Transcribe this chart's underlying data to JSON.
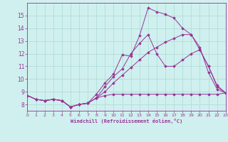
{
  "background_color": "#cff0ee",
  "grid_color": "#b0ddd8",
  "line_color": "#993399",
  "xlabel": "Windchill (Refroidissement éolien,°C)",
  "xlim": [
    0,
    23
  ],
  "ylim": [
    7.5,
    16.0
  ],
  "xticks": [
    0,
    1,
    2,
    3,
    4,
    5,
    6,
    7,
    8,
    9,
    10,
    11,
    12,
    13,
    14,
    15,
    16,
    17,
    18,
    19,
    20,
    21,
    22,
    23
  ],
  "yticks": [
    8,
    9,
    10,
    11,
    12,
    13,
    14,
    15
  ],
  "series": [
    {
      "x": [
        0,
        1,
        2,
        3,
        4,
        5,
        6,
        7,
        8,
        9,
        10,
        11,
        12,
        13,
        14,
        15,
        16,
        17,
        18,
        19,
        20,
        21,
        22,
        23
      ],
      "y": [
        8.7,
        8.4,
        8.3,
        8.4,
        8.3,
        7.8,
        8.0,
        8.1,
        8.8,
        9.7,
        10.4,
        11.9,
        11.8,
        13.4,
        15.6,
        15.3,
        15.1,
        14.8,
        14.0,
        13.5,
        12.3,
        11.0,
        9.4,
        8.9
      ]
    },
    {
      "x": [
        0,
        1,
        2,
        3,
        4,
        5,
        6,
        7,
        8,
        9,
        10,
        11,
        12,
        13,
        14,
        15,
        16,
        17,
        18,
        19,
        20,
        21,
        22,
        23
      ],
      "y": [
        8.7,
        8.4,
        8.3,
        8.4,
        8.3,
        7.8,
        8.0,
        8.1,
        8.5,
        9.4,
        10.2,
        10.8,
        12.0,
        12.8,
        13.5,
        12.0,
        11.0,
        11.0,
        11.5,
        12.0,
        12.3,
        11.0,
        9.5,
        8.9
      ]
    },
    {
      "x": [
        0,
        1,
        2,
        3,
        4,
        5,
        6,
        7,
        8,
        9,
        10,
        11,
        12,
        13,
        14,
        15,
        16,
        17,
        18,
        19,
        20,
        21,
        22,
        23
      ],
      "y": [
        8.7,
        8.4,
        8.3,
        8.4,
        8.3,
        7.8,
        8.0,
        8.1,
        8.5,
        9.0,
        9.7,
        10.3,
        10.9,
        11.5,
        12.1,
        12.5,
        12.9,
        13.2,
        13.5,
        13.5,
        12.5,
        10.5,
        9.2,
        8.9
      ]
    },
    {
      "x": [
        0,
        1,
        2,
        3,
        4,
        5,
        6,
        7,
        8,
        9,
        10,
        11,
        12,
        13,
        14,
        15,
        16,
        17,
        18,
        19,
        20,
        21,
        22,
        23
      ],
      "y": [
        8.7,
        8.4,
        8.3,
        8.4,
        8.3,
        7.8,
        8.0,
        8.1,
        8.5,
        8.7,
        8.8,
        8.8,
        8.8,
        8.8,
        8.8,
        8.8,
        8.8,
        8.8,
        8.8,
        8.8,
        8.8,
        8.8,
        8.8,
        8.9
      ]
    }
  ]
}
